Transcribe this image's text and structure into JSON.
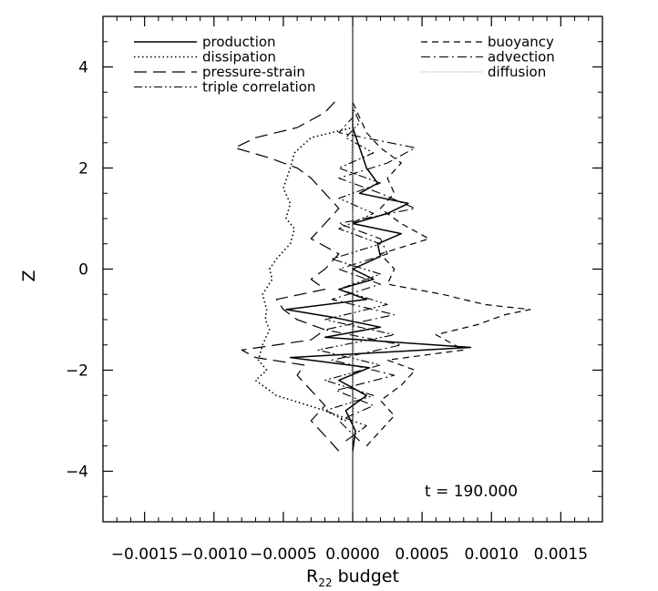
{
  "chart_data": {
    "type": "line",
    "xlabel": "R",
    "xlabel_sub": "22",
    "xlabel_suffix": " budget",
    "ylabel": "Z",
    "xlim": [
      -0.0018,
      0.0018
    ],
    "ylim": [
      -5,
      5
    ],
    "x_ticks": [
      -0.0015,
      -0.001,
      -0.0005,
      0.0,
      0.0005,
      0.001,
      0.0015
    ],
    "x_tick_labels": [
      "−0.0015",
      "−0.0010",
      "−0.0005",
      "0.0000",
      "0.0005",
      "0.0010",
      "0.0015"
    ],
    "y_ticks": [
      -4,
      -2,
      0,
      2,
      4
    ],
    "y_tick_labels": [
      "−4",
      "−2",
      "0",
      "2",
      "4"
    ],
    "grid": false,
    "legend_position": "top",
    "annotation": "t  =  190.000",
    "series": [
      {
        "name": "production",
        "dash": "solid",
        "z": [
          -3.6,
          -3.2,
          -2.8,
          -2.5,
          -2.2,
          -1.95,
          -1.75,
          -1.55,
          -1.35,
          -1.15,
          -0.95,
          -0.8,
          -0.6,
          -0.4,
          -0.2,
          0.0,
          0.25,
          0.5,
          0.7,
          0.9,
          1.1,
          1.3,
          1.5,
          1.7,
          2.0,
          2.4,
          2.8,
          3.2
        ],
        "x": [
          0.0,
          2e-05,
          -5e-05,
          0.0001,
          -0.0001,
          0.00012,
          -0.00045,
          0.00085,
          -0.0002,
          0.0002,
          -0.00015,
          -0.00048,
          0.0001,
          -0.0001,
          0.00015,
          0.0,
          0.0002,
          0.00018,
          0.00035,
          0.0,
          0.00025,
          0.0004,
          5e-05,
          0.00018,
          0.0001,
          5e-05,
          0.0,
          0.0
        ]
      },
      {
        "name": "dissipation",
        "dash": "dotted",
        "z": [
          -3.0,
          -2.8,
          -2.5,
          -2.2,
          -2.0,
          -1.8,
          -1.5,
          -1.2,
          -1.0,
          -0.8,
          -0.5,
          -0.2,
          0.0,
          0.2,
          0.5,
          0.8,
          1.0,
          1.3,
          1.6,
          2.0,
          2.3,
          2.6,
          2.8
        ],
        "x": [
          -5e-05,
          -0.0002,
          -0.00055,
          -0.0007,
          -0.00062,
          -0.00068,
          -0.00065,
          -0.0006,
          -0.00063,
          -0.00062,
          -0.00065,
          -0.00058,
          -0.0006,
          -0.00055,
          -0.00045,
          -0.00042,
          -0.00048,
          -0.00045,
          -0.0005,
          -0.00045,
          -0.00042,
          -0.0003,
          0.0
        ]
      },
      {
        "name": "pressure-strain",
        "dash": "longdash",
        "z": [
          -3.6,
          -3.3,
          -3.0,
          -2.7,
          -2.4,
          -2.1,
          -1.9,
          -1.75,
          -1.6,
          -1.4,
          -1.2,
          -1.0,
          -0.8,
          -0.6,
          -0.4,
          -0.2,
          0.0,
          0.3,
          0.6,
          0.9,
          1.2,
          1.5,
          1.8,
          2.0,
          2.2,
          2.4,
          2.6,
          2.8,
          3.1,
          3.4
        ],
        "x": [
          -0.0001,
          -0.0002,
          -0.0003,
          -0.0002,
          -0.0003,
          -0.0004,
          -0.00035,
          -0.0007,
          -0.0008,
          -0.0003,
          -0.0002,
          -0.0004,
          -0.0005,
          -0.00055,
          -0.0002,
          -0.0003,
          -0.0002,
          -0.0001,
          -0.0003,
          -0.0002,
          -0.0001,
          -0.0002,
          -0.0003,
          -0.0004,
          -0.0006,
          -0.00085,
          -0.0007,
          -0.0004,
          -0.0002,
          -0.0001
        ]
      },
      {
        "name": "triple correlation",
        "dash": "dashdotdot",
        "z": [
          -3.4,
          -3.1,
          -2.8,
          -2.5,
          -2.2,
          -1.9,
          -1.6,
          -1.3,
          -1.0,
          -0.7,
          -0.4,
          -0.1,
          0.2,
          0.5,
          0.8,
          1.1,
          1.4,
          1.7,
          2.0,
          2.3,
          2.6,
          2.9,
          3.2
        ],
        "x": [
          -5e-05,
          0.0001,
          -0.0002,
          0.00015,
          -0.0002,
          0.0002,
          -0.00025,
          0.0003,
          -0.0002,
          0.00025,
          -0.0001,
          0.0002,
          -0.00015,
          0.0002,
          -0.0001,
          0.00015,
          -0.0001,
          0.0002,
          -0.0001,
          0.00015,
          -5e-05,
          5e-05,
          0.0
        ]
      },
      {
        "name": "buoyancy",
        "dash": "dash",
        "z": [
          -3.5,
          -3.2,
          -2.9,
          -2.6,
          -2.3,
          -2.0,
          -1.8,
          -1.6,
          -1.3,
          -1.1,
          -0.9,
          -0.8,
          -0.7,
          -0.5,
          -0.3,
          0.0,
          0.3,
          0.6,
          0.9,
          1.2,
          1.5,
          1.8,
          2.1,
          2.4,
          2.7,
          3.0,
          3.3
        ],
        "x": [
          0.0001,
          0.0002,
          0.0003,
          0.0002,
          0.00035,
          0.00045,
          0.00025,
          0.0008,
          0.0006,
          0.0009,
          0.0011,
          0.00128,
          0.00095,
          0.00065,
          0.00025,
          0.0003,
          0.0002,
          0.00055,
          0.00035,
          0.0002,
          0.0003,
          0.00025,
          0.00035,
          0.0002,
          0.0001,
          5e-05,
          0.0
        ]
      },
      {
        "name": "advection",
        "dash": "dashdot",
        "z": [
          -3.4,
          -3.0,
          -2.7,
          -2.4,
          -2.1,
          -1.8,
          -1.5,
          -1.2,
          -0.9,
          -0.6,
          -0.3,
          0.0,
          0.3,
          0.6,
          0.9,
          1.2,
          1.5,
          1.8,
          2.1,
          2.4,
          2.7,
          3.0
        ],
        "x": [
          5e-05,
          -0.0001,
          0.00015,
          -0.00012,
          0.0003,
          -0.00015,
          0.00035,
          -0.0002,
          0.0003,
          -0.00015,
          0.0002,
          -0.0001,
          0.00025,
          0.0002,
          -0.0001,
          0.00045,
          0.0002,
          -0.0001,
          0.00025,
          0.00045,
          -0.0001,
          0.0
        ]
      },
      {
        "name": "diffusion",
        "dash": "finedot",
        "z": [
          -3.2,
          -2.6,
          -2.0,
          -1.4,
          -0.8,
          -0.2,
          0.4,
          1.0,
          1.6,
          2.2,
          2.8,
          3.2
        ],
        "x": [
          0.0,
          1e-05,
          -1e-05,
          2e-05,
          0.0,
          -1e-05,
          1e-05,
          0.0,
          1e-05,
          -1e-05,
          0.0,
          0.0
        ]
      }
    ]
  }
}
